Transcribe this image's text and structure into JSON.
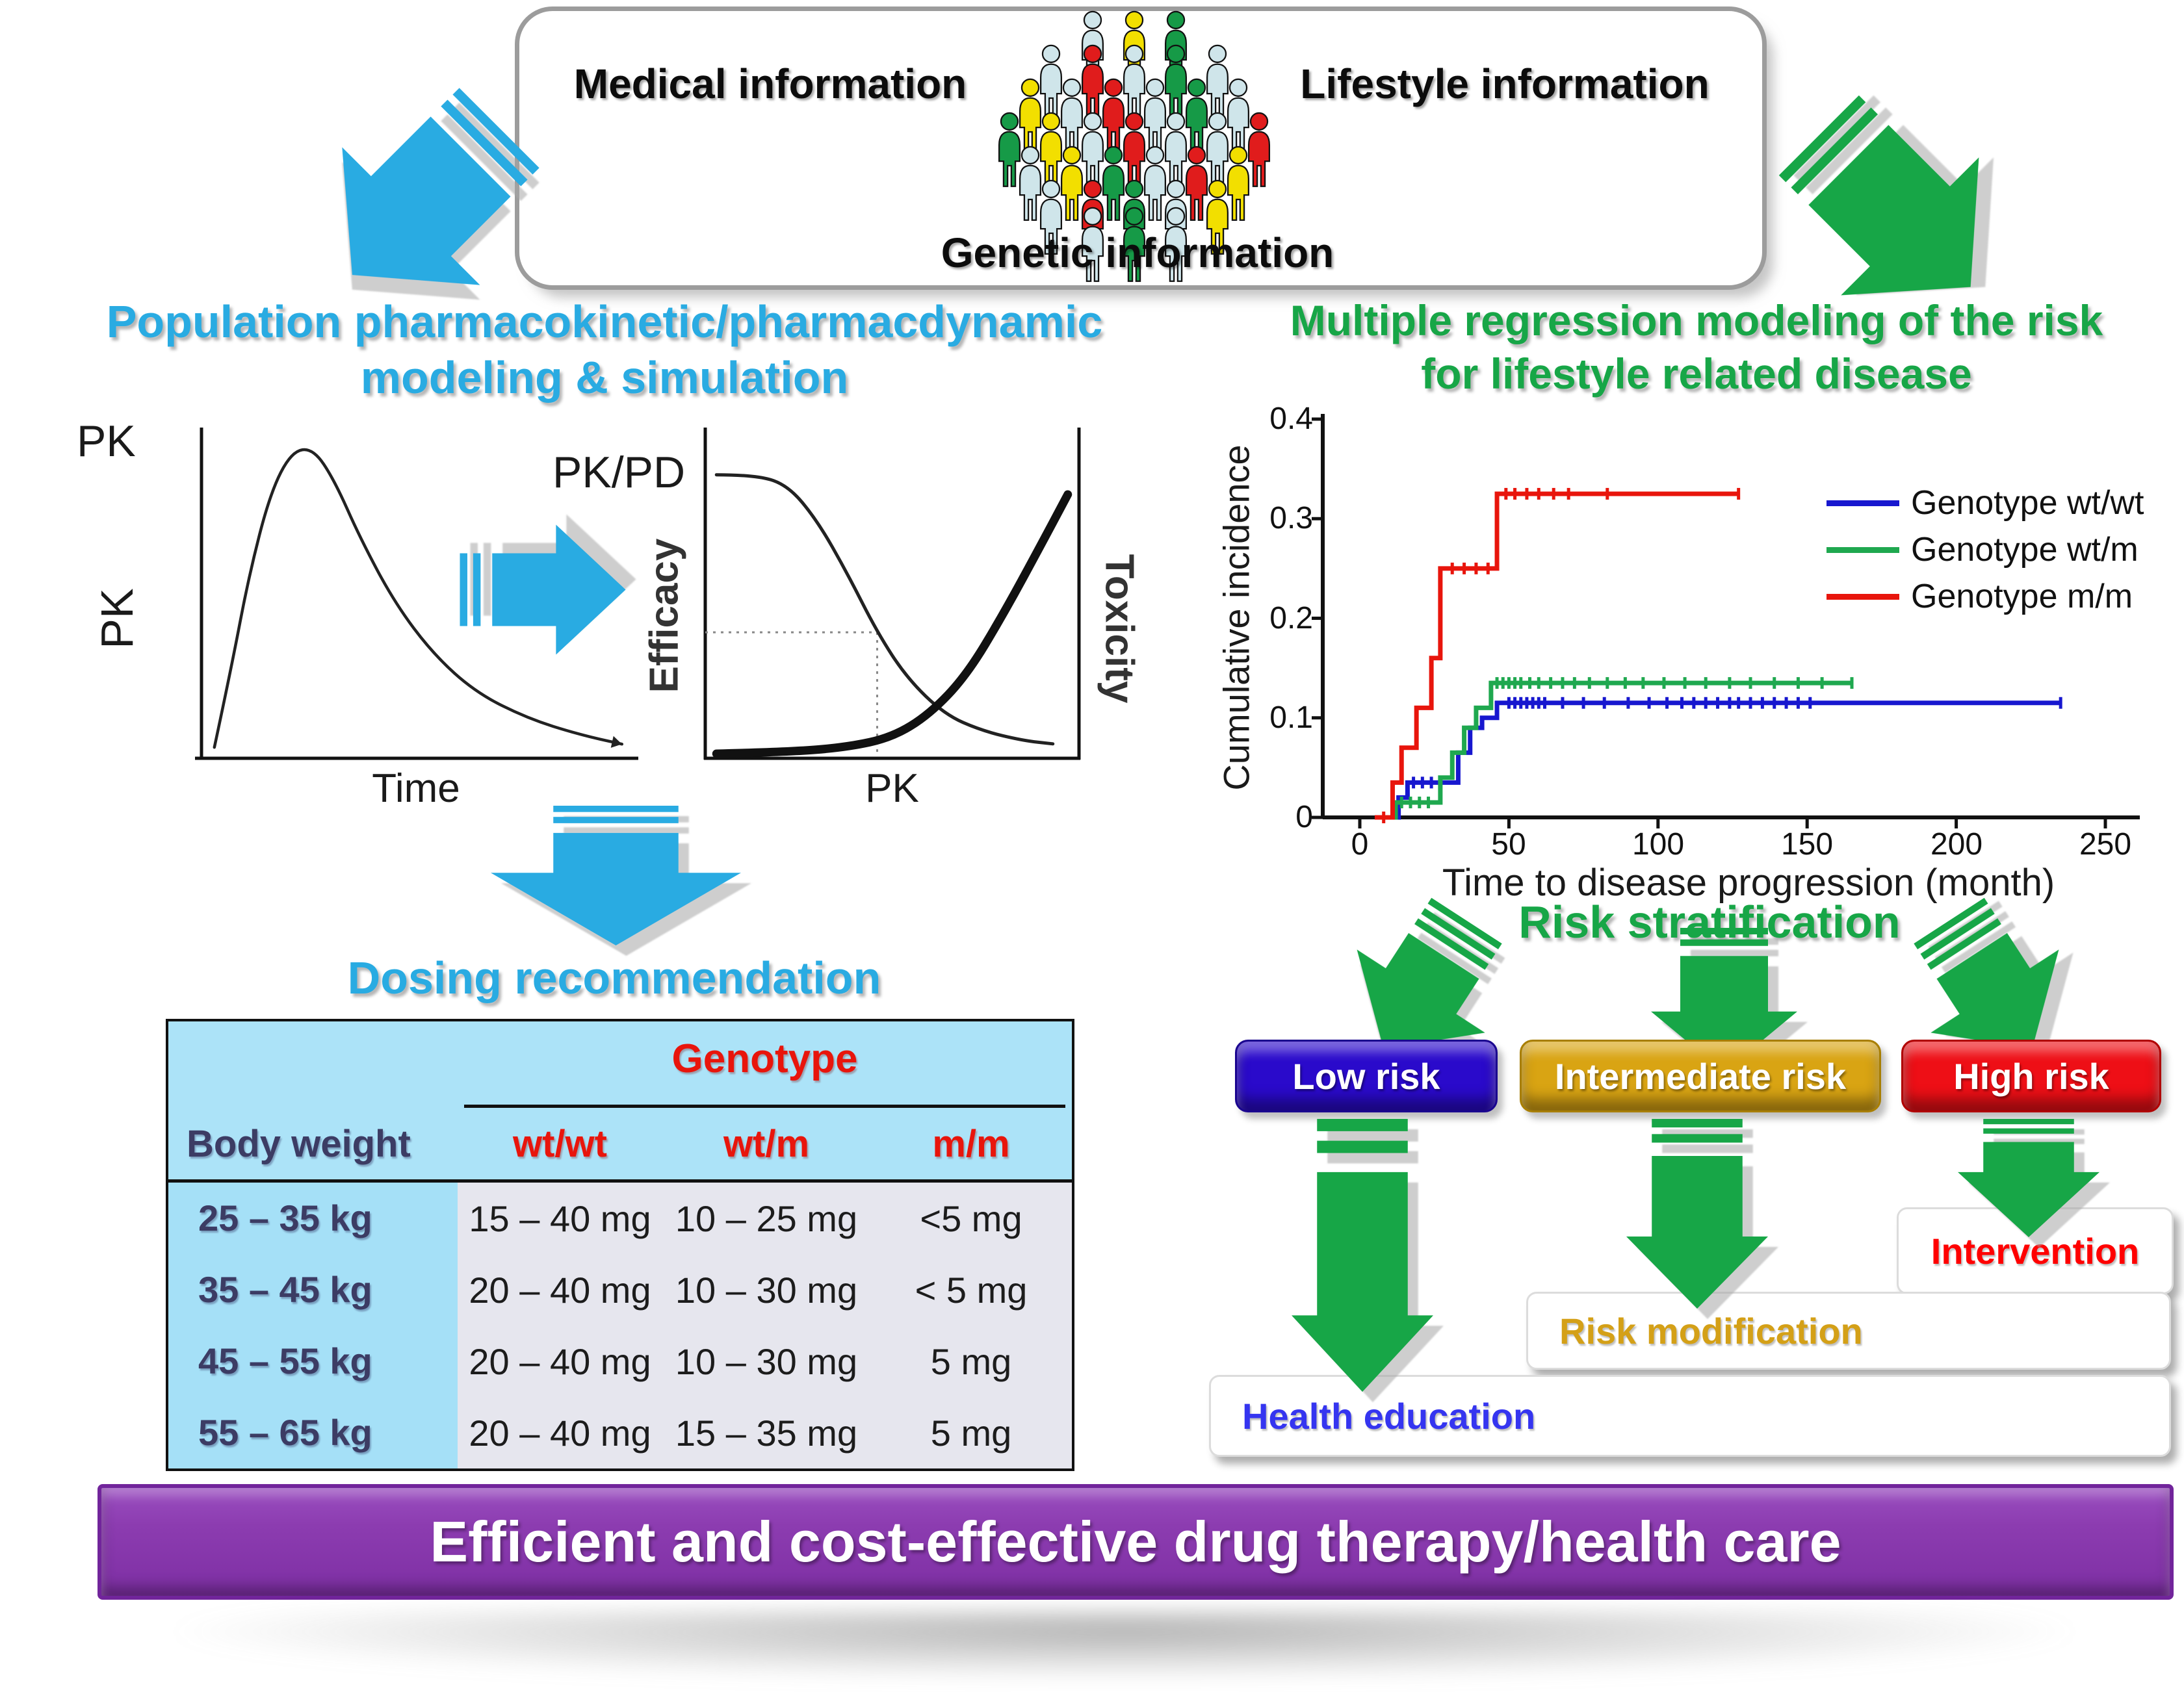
{
  "palette": {
    "cyan_arrow": "#29ABE2",
    "green_arrow": "#17A647",
    "cyan_title": "#29ABE2",
    "green_title": "#17A647",
    "table_header_bg": "#ACE3F8",
    "table_body_bg": "#E6E6EE",
    "banner_purple": "#8C3CB0"
  },
  "top_box": {
    "medical_label": "Medical information",
    "lifestyle_label": "Lifestyle information",
    "genetic_label": "Genetic information",
    "crowd_colors": [
      "#CFE5EA",
      "#F2DF00",
      "#169A47",
      "#CFE5EA",
      "#E01C1C",
      "#CFE5EA",
      "#169A47",
      "#CFE5EA",
      "#F2DF00",
      "#CFE5EA",
      "#E01C1C",
      "#CFE5EA",
      "#169A47",
      "#CFE5EA",
      "#169A47",
      "#F2DF00",
      "#CFE5EA",
      "#E01C1C",
      "#CFE5EA",
      "#CFE5EA",
      "#E01C1C",
      "#CFE5EA",
      "#F2DF00",
      "#169A47",
      "#CFE5EA",
      "#E01C1C",
      "#F2DF00",
      "#CFE5EA",
      "#E01C1C",
      "#169A47",
      "#CFE5EA",
      "#F2DF00",
      "#CFE5EA",
      "#169A47",
      "#CFE5EA"
    ]
  },
  "left_section": {
    "title_line1": "Population pharmacokinetic/pharmacdynamic",
    "title_line2": "modeling & simulation",
    "dosing_title": "Dosing recommendation",
    "table": {
      "genotype_header": "Genotype",
      "body_weight_header": "Body weight",
      "genotype_columns": [
        "wt/wt",
        "wt/m",
        "m/m"
      ],
      "rows": [
        {
          "weight": "25 – 35 kg",
          "doses": [
            "15 – 40 mg",
            "10 – 25 mg",
            "<5 mg"
          ]
        },
        {
          "weight": "35 – 45 kg",
          "doses": [
            "20 – 40 mg",
            "10 – 30 mg",
            "< 5 mg"
          ]
        },
        {
          "weight": "45 – 55 kg",
          "doses": [
            "20 – 40 mg",
            "10 – 30 mg",
            "5 mg"
          ]
        },
        {
          "weight": "55 – 65 kg",
          "doses": [
            "20 – 40 mg",
            "15 – 35 mg",
            "5 mg"
          ]
        }
      ]
    }
  },
  "right_section": {
    "title_line1": "Multiple regression modeling of the risk",
    "title_line2": "for lifestyle related disease",
    "risk_title": "Risk stratification",
    "buttons": [
      {
        "label": "Low risk",
        "color": "#2A0ACB"
      },
      {
        "label": "Intermediate risk",
        "color": "#D9A413"
      },
      {
        "label": "High risk",
        "color": "#EE0F16"
      }
    ],
    "outcome_boxes": [
      {
        "label": "Intervention",
        "text_color": "#FF0000"
      },
      {
        "label": "Risk modification",
        "text_color": "#D4A017"
      },
      {
        "label": "Health education",
        "text_color": "#3535F0"
      }
    ]
  },
  "banner": {
    "label": "Efficient and cost-effective drug therapy/health care"
  },
  "chart_data": [
    {
      "id": "pk-time",
      "type": "line",
      "corner_label": "PK",
      "ylabel": "PK",
      "xlabel": "Time",
      "axes_numeric": false,
      "series": [
        {
          "color": "#222222",
          "width": 4.5,
          "arrow_end": true,
          "points_norm": [
            [
              0.03,
              0.03
            ],
            [
              0.07,
              0.28
            ],
            [
              0.11,
              0.56
            ],
            [
              0.16,
              0.82
            ],
            [
              0.21,
              0.95
            ],
            [
              0.26,
              0.96
            ],
            [
              0.31,
              0.86
            ],
            [
              0.37,
              0.68
            ],
            [
              0.45,
              0.48
            ],
            [
              0.54,
              0.32
            ],
            [
              0.64,
              0.2
            ],
            [
              0.76,
              0.12
            ],
            [
              0.88,
              0.07
            ],
            [
              0.98,
              0.04
            ]
          ]
        }
      ]
    },
    {
      "id": "pk-pd",
      "type": "line",
      "corner_label": "PK/PD",
      "ylabel_left": "Efficacy",
      "ylabel_right": "Toxicity",
      "xlabel": "PK",
      "axes_numeric": false,
      "guides": {
        "x_norm": 0.46,
        "y_norm": 0.38
      },
      "series": [
        {
          "color": "#222222",
          "width": 5,
          "points_norm": [
            [
              0.03,
              0.86
            ],
            [
              0.13,
              0.86
            ],
            [
              0.22,
              0.83
            ],
            [
              0.3,
              0.72
            ],
            [
              0.38,
              0.56
            ],
            [
              0.46,
              0.38
            ],
            [
              0.54,
              0.24
            ],
            [
              0.64,
              0.13
            ],
            [
              0.74,
              0.08
            ],
            [
              0.85,
              0.05
            ],
            [
              0.93,
              0.04
            ]
          ]
        },
        {
          "color": "#111111",
          "width": 13,
          "points_norm": [
            [
              0.03,
              0.01
            ],
            [
              0.22,
              0.015
            ],
            [
              0.38,
              0.03
            ],
            [
              0.5,
              0.06
            ],
            [
              0.6,
              0.13
            ],
            [
              0.7,
              0.25
            ],
            [
              0.8,
              0.44
            ],
            [
              0.9,
              0.65
            ],
            [
              0.97,
              0.8
            ]
          ]
        }
      ]
    },
    {
      "id": "incidence",
      "type": "step-line",
      "ylabel": "Cumulative incidence",
      "xlabel": "Time to disease progression (month)",
      "xlim": [
        0,
        250
      ],
      "ylim": [
        0,
        0.4
      ],
      "xticks": [
        0,
        50,
        100,
        150,
        200,
        250
      ],
      "yticks": [
        0.4,
        0.3,
        0.2,
        0.1,
        0
      ],
      "legend_position": "upper right",
      "series": [
        {
          "name": "Genotype wt/wt",
          "color": "#1717CF",
          "points": [
            [
              8,
              0
            ],
            [
              13,
              0.02
            ],
            [
              16,
              0.035
            ],
            [
              33,
              0.065
            ],
            [
              37,
              0.09
            ],
            [
              41,
              0.1
            ],
            [
              46,
              0.115
            ],
            [
              235,
              0.115
            ]
          ],
          "censors": [
            18,
            21,
            24,
            27,
            50,
            52,
            54,
            56,
            58,
            60,
            62,
            68,
            75,
            82,
            90,
            97,
            103,
            108,
            112,
            116,
            120,
            124,
            127,
            131,
            135,
            139,
            143,
            147,
            151,
            235
          ]
        },
        {
          "name": "Genotype wt/m",
          "color": "#1FA84F",
          "points": [
            [
              8,
              0
            ],
            [
              12,
              0.015
            ],
            [
              27,
              0.04
            ],
            [
              31,
              0.065
            ],
            [
              35,
              0.09
            ],
            [
              39,
              0.11
            ],
            [
              44,
              0.135
            ],
            [
              165,
              0.135
            ]
          ],
          "censors": [
            14,
            17,
            20,
            23,
            46,
            48,
            50,
            52,
            54,
            57,
            60,
            64,
            68,
            72,
            77,
            83,
            89,
            95,
            102,
            109,
            116,
            124,
            131,
            139,
            147,
            155,
            165
          ]
        },
        {
          "name": "Genotype m/m",
          "color": "#E8150C",
          "points": [
            [
              5,
              0
            ],
            [
              11,
              0.035
            ],
            [
              14,
              0.07
            ],
            [
              19,
              0.11
            ],
            [
              24,
              0.16
            ],
            [
              27,
              0.25
            ],
            [
              46,
              0.325
            ],
            [
              127,
              0.325
            ]
          ],
          "censors": [
            8,
            31,
            35,
            39,
            43,
            49,
            52,
            56,
            60,
            65,
            70,
            83,
            127
          ]
        }
      ]
    }
  ]
}
